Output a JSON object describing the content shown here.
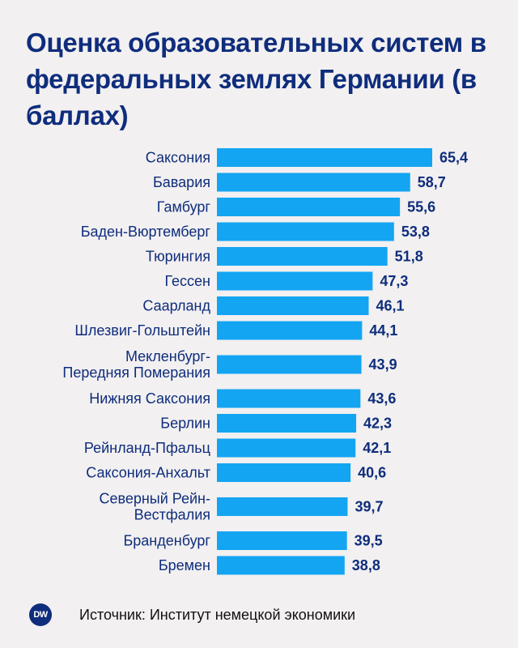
{
  "chart_data": {
    "type": "bar",
    "orientation": "horizontal",
    "title": "Оценка образовательных систем в федеральных землях Германии (в баллах)",
    "categories": [
      "Саксония",
      "Бавария",
      "Гамбург",
      "Баден-Вюртемберг",
      "Тюрингия",
      "Гессен",
      "Саарланд",
      "Шлезвиг-Гольштейн",
      "Мекленбург-\nПередняя Померания",
      "Нижняя Саксония",
      "Берлин",
      "Рейнланд-Пфальц",
      "Саксония-Анхальт",
      "Северный Рейн-\nВестфалия",
      "Бранденбург",
      "Бремен"
    ],
    "values": [
      65.4,
      58.7,
      55.6,
      53.8,
      51.8,
      47.3,
      46.1,
      44.1,
      43.9,
      43.6,
      42.3,
      42.1,
      40.6,
      39.7,
      39.5,
      38.8
    ],
    "value_labels": [
      "65,4",
      "58,7",
      "55,6",
      "53,8",
      "51,8",
      "47,3",
      "46,1",
      "44,1",
      "43,9",
      "43,6",
      "42,3",
      "42,1",
      "40,6",
      "39,7",
      "39,5",
      "38,8"
    ],
    "xlim": [
      0,
      65.4
    ],
    "xlabel": "",
    "ylabel": "",
    "grid": false,
    "colors": {
      "bar": "#13a5f2",
      "text": "#0f2d7c"
    }
  },
  "footer": {
    "logo_text": "DW",
    "source": "Источник: Институт немецкой экономики"
  }
}
